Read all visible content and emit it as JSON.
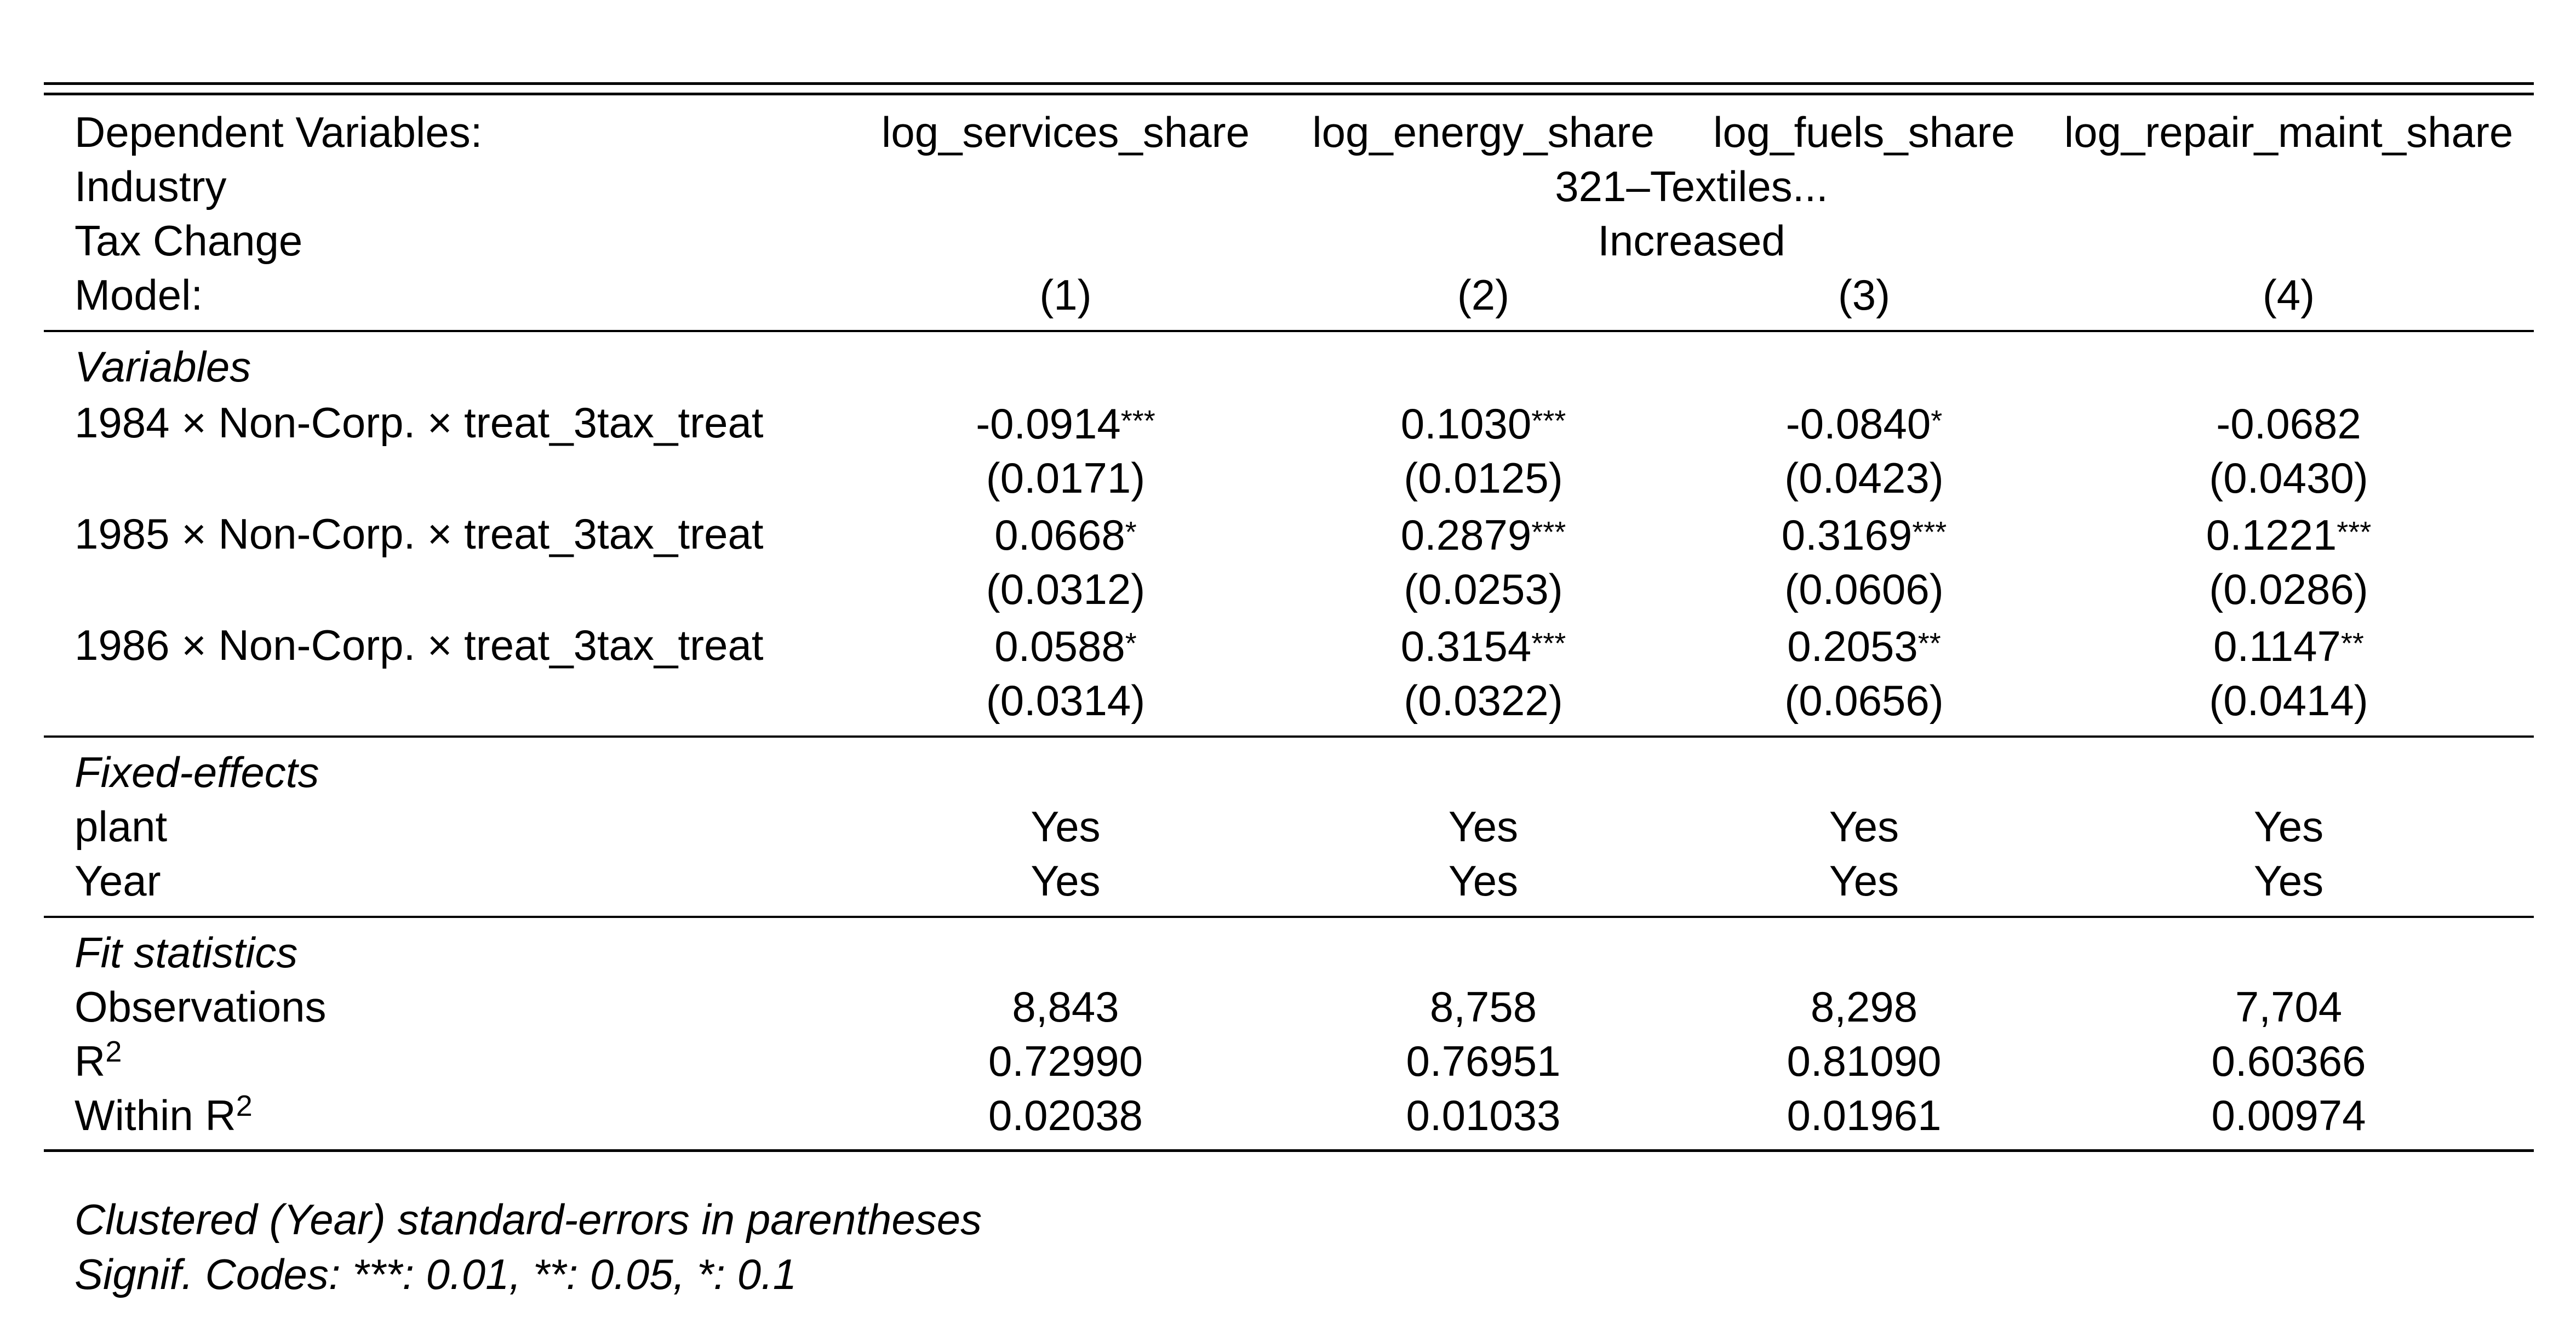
{
  "header": {
    "dependent_label": "Dependent Variables:",
    "dependent_vars": [
      "log_services_share",
      "log_energy_share",
      "log_fuels_share",
      "log_repair_maint_share"
    ],
    "industry_label": "Industry",
    "industry_value": "321–Textiles...",
    "tax_label": "Tax Change",
    "tax_value": "Increased",
    "model_label": "Model:",
    "models": [
      "(1)",
      "(2)",
      "(3)",
      "(4)"
    ]
  },
  "variables": {
    "section_title": "Variables",
    "rows": [
      {
        "label_year": "1984",
        "label_rest": "Non-Corp.",
        "label_var": "treat_3tax_treat",
        "coefs": [
          "-0.0914",
          "0.1030",
          "-0.0840",
          "-0.0682"
        ],
        "stars": [
          "***",
          "***",
          "*",
          ""
        ],
        "ses": [
          "(0.0171)",
          "(0.0125)",
          "(0.0423)",
          "(0.0430)"
        ]
      },
      {
        "label_year": "1985",
        "label_rest": "Non-Corp.",
        "label_var": "treat_3tax_treat",
        "coefs": [
          "0.0668",
          "0.2879",
          "0.3169",
          "0.1221"
        ],
        "stars": [
          "*",
          "***",
          "***",
          "***"
        ],
        "ses": [
          "(0.0312)",
          "(0.0253)",
          "(0.0606)",
          "(0.0286)"
        ]
      },
      {
        "label_year": "1986",
        "label_rest": "Non-Corp.",
        "label_var": "treat_3tax_treat",
        "coefs": [
          "0.0588",
          "0.3154",
          "0.2053",
          "0.1147"
        ],
        "stars": [
          "*",
          "***",
          "**",
          "**"
        ],
        "ses": [
          "(0.0314)",
          "(0.0322)",
          "(0.0656)",
          "(0.0414)"
        ]
      }
    ],
    "times_symbol": "×"
  },
  "fixed_effects": {
    "section_title": "Fixed-effects",
    "rows": [
      {
        "label": "plant",
        "values": [
          "Yes",
          "Yes",
          "Yes",
          "Yes"
        ]
      },
      {
        "label": "Year",
        "values": [
          "Yes",
          "Yes",
          "Yes",
          "Yes"
        ]
      }
    ]
  },
  "fit_statistics": {
    "section_title": "Fit statistics",
    "observations_label": "Observations",
    "observations": [
      "8,843",
      "8,758",
      "8,298",
      "7,704"
    ],
    "r2_label": "R",
    "r2_sup": "2",
    "r2": [
      "0.72990",
      "0.76951",
      "0.81090",
      "0.60366"
    ],
    "within_r2_label": "Within R",
    "within_r2_sup": "2",
    "within_r2": [
      "0.02038",
      "0.01033",
      "0.01961",
      "0.00974"
    ]
  },
  "notes": {
    "se_note": "Clustered (Year) standard-errors in parentheses",
    "signif_note": "Signif. Codes: ***: 0.01, **: 0.05, *: 0.1"
  }
}
